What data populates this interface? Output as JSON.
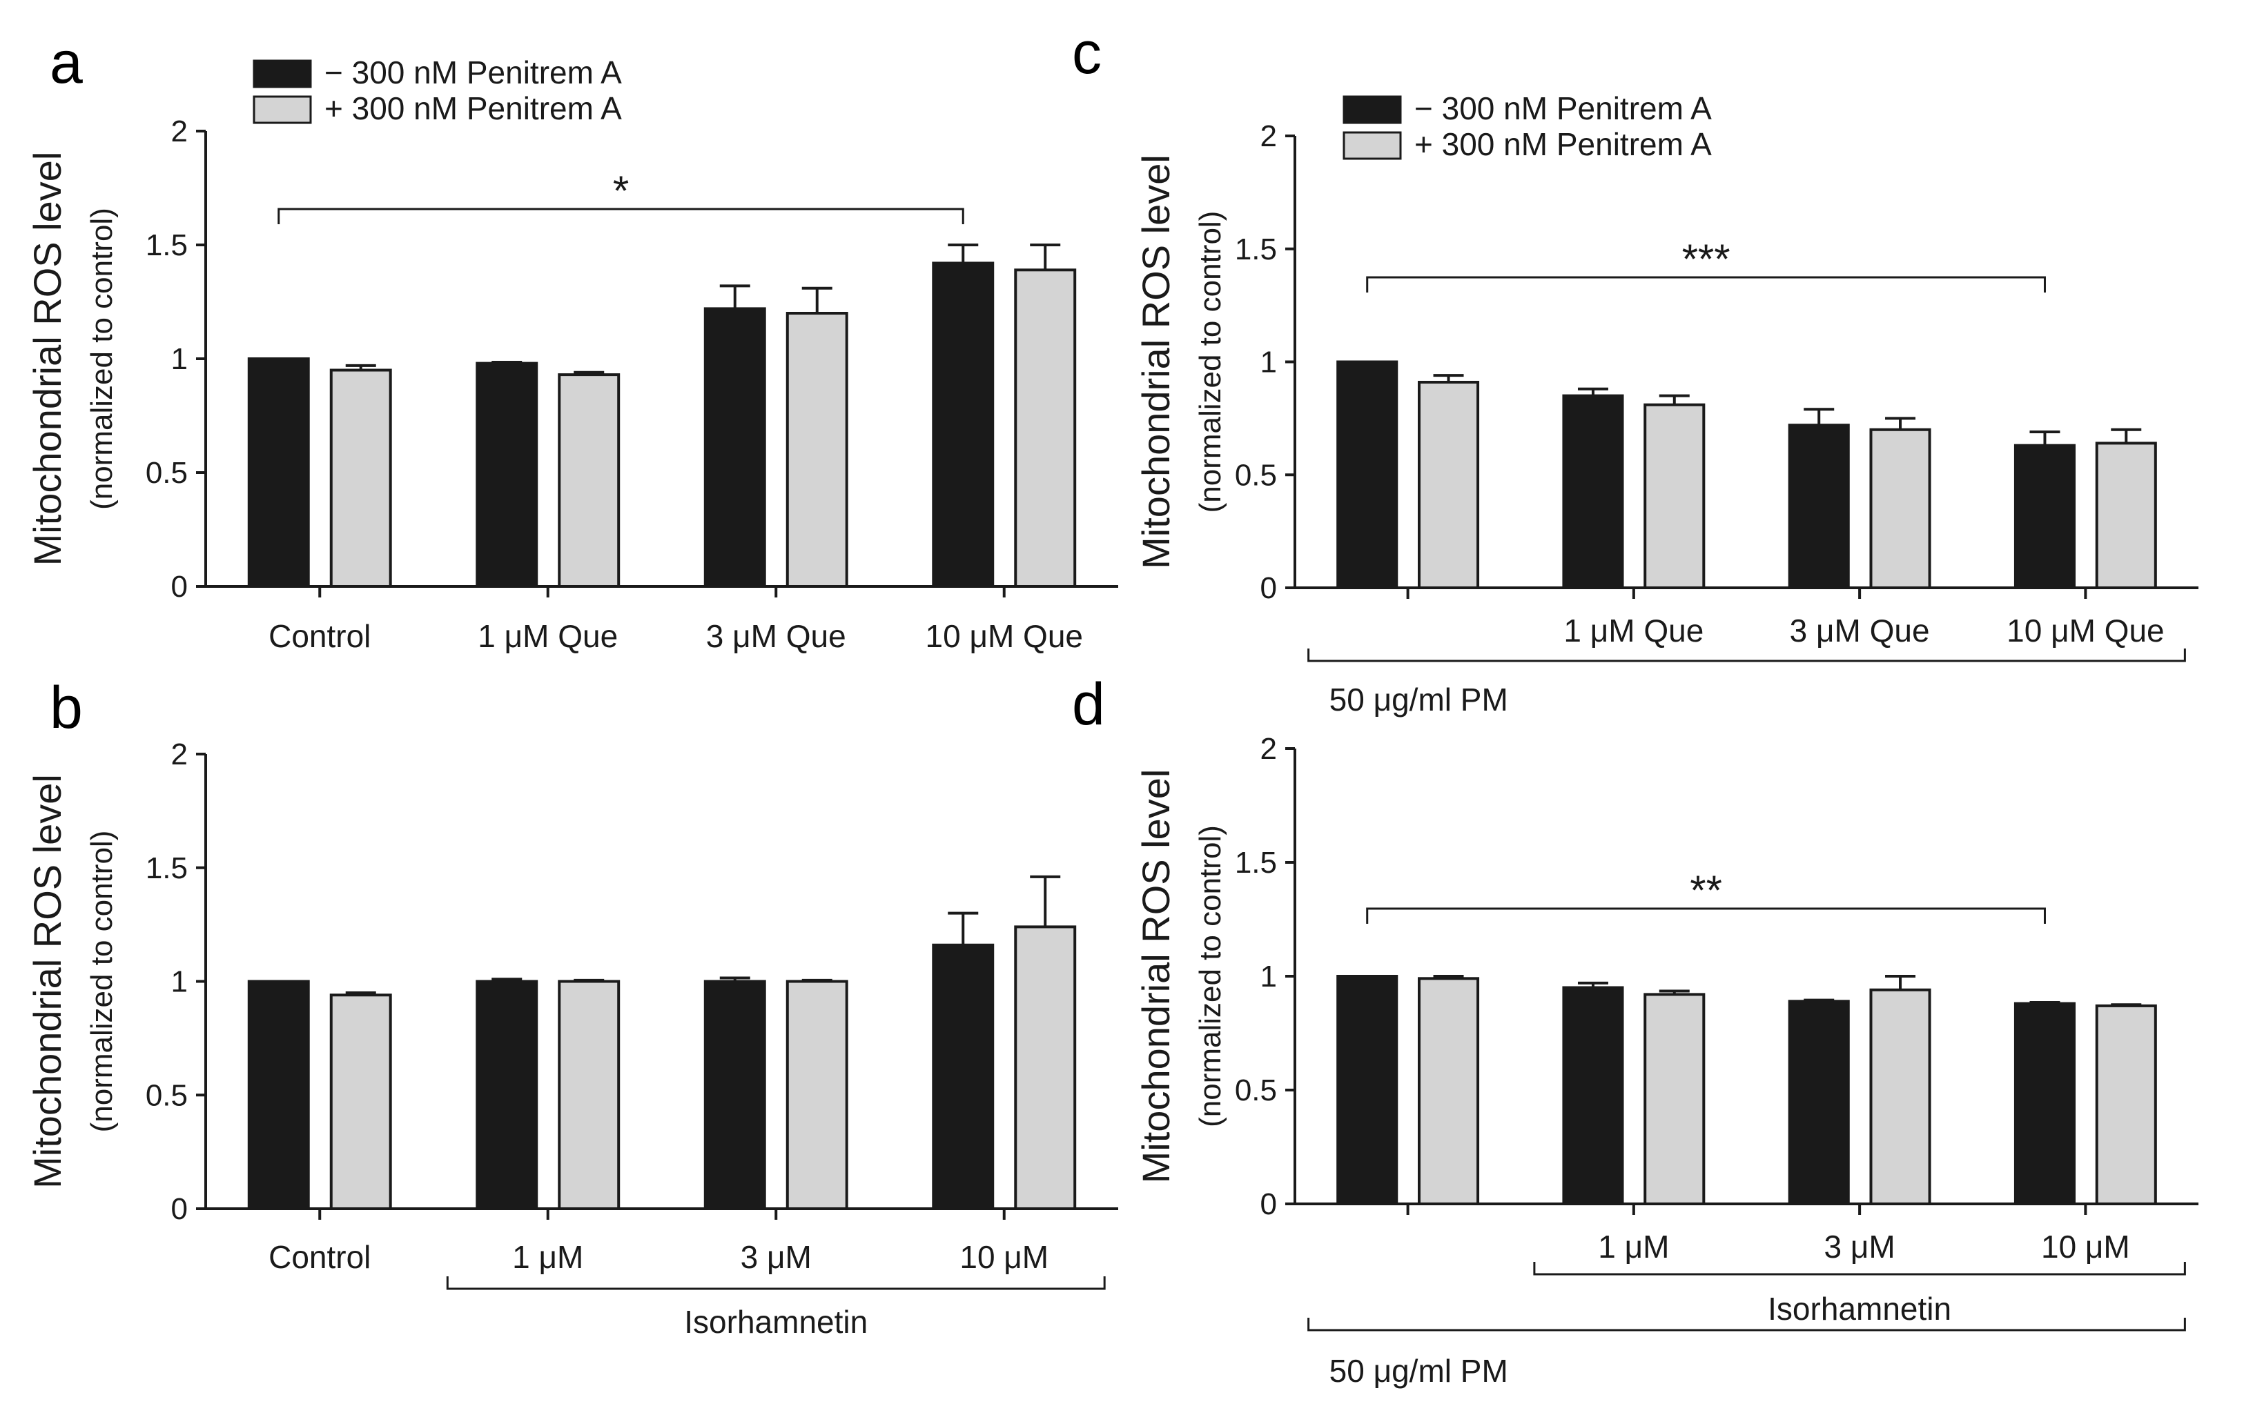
{
  "figure": {
    "legend": {
      "minus_label": "− 300 nM Penitrem A",
      "plus_label": "+ 300 nM Penitrem A"
    },
    "colors": {
      "minus": "#1a1a1a",
      "plus": "#d4d4d4",
      "axis": "#1a1a1a"
    }
  },
  "chart_data": [
    {
      "panel": "a",
      "type": "bar",
      "title": "",
      "ylabel": "Mitochondrial ROS level",
      "ylabel_sub": "(normalized to control)",
      "ylim": [
        0,
        2
      ],
      "yticks": [
        "0",
        "0.5",
        "1",
        "1.5",
        "2"
      ],
      "categories": [
        "Control",
        "1 μM Que",
        "3 μM Que",
        "10 μM Que"
      ],
      "series": [
        {
          "name": "− 300 nM Penitrem A",
          "values": [
            1.0,
            0.98,
            1.22,
            1.42
          ],
          "errors": [
            0.0,
            0.005,
            0.1,
            0.08
          ]
        },
        {
          "name": "+ 300 nM Penitrem A",
          "values": [
            0.95,
            0.93,
            1.2,
            1.39
          ],
          "errors": [
            0.02,
            0.01,
            0.11,
            0.11
          ]
        }
      ],
      "legend": [
        "− 300 nM Penitrem A",
        "+ 300 nM Penitrem A"
      ],
      "significance": {
        "label": "*",
        "from": 0,
        "to": 3
      },
      "group_labels": []
    },
    {
      "panel": "b",
      "type": "bar",
      "title": "",
      "ylabel": "Mitochondrial ROS level",
      "ylabel_sub": "(normalized to control)",
      "ylim": [
        0,
        2
      ],
      "yticks": [
        "0",
        "0.5",
        "1",
        "1.5",
        "2"
      ],
      "categories": [
        "Control",
        "1 μM",
        "3 μM",
        "10 μM"
      ],
      "series": [
        {
          "name": "− 300 nM Penitrem A",
          "values": [
            1.0,
            1.0,
            1.0,
            1.16
          ],
          "errors": [
            0.0,
            0.01,
            0.015,
            0.14
          ]
        },
        {
          "name": "+ 300 nM Penitrem A",
          "values": [
            0.94,
            1.0,
            1.0,
            1.24
          ],
          "errors": [
            0.01,
            0.005,
            0.005,
            0.22
          ]
        }
      ],
      "legend": [],
      "significance": null,
      "group_labels": [
        {
          "text": "Isorhamnetin",
          "from": 1,
          "to": 3
        }
      ]
    },
    {
      "panel": "c",
      "type": "bar",
      "title": "",
      "ylabel": "Mitochondrial ROS level",
      "ylabel_sub": "(normalized to control)",
      "ylim": [
        0,
        2
      ],
      "yticks": [
        "0",
        "0.5",
        "1",
        "1.5",
        "2"
      ],
      "categories": [
        "",
        "1 μM Que",
        "3 μM Que",
        "10 μM Que"
      ],
      "series": [
        {
          "name": "− 300 nM Penitrem A",
          "values": [
            1.0,
            0.85,
            0.72,
            0.63
          ],
          "errors": [
            0.0,
            0.03,
            0.07,
            0.06
          ]
        },
        {
          "name": "+ 300 nM Penitrem A",
          "values": [
            0.91,
            0.81,
            0.7,
            0.64
          ],
          "errors": [
            0.03,
            0.04,
            0.05,
            0.06
          ]
        }
      ],
      "legend": [
        "− 300 nM Penitrem A",
        "+ 300 nM Penitrem A"
      ],
      "significance": {
        "label": "***",
        "from": 0,
        "to": 3
      },
      "group_labels": [
        {
          "text": "50 μg/ml PM",
          "from": 0,
          "to": 3
        }
      ]
    },
    {
      "panel": "d",
      "type": "bar",
      "title": "",
      "ylabel": "Mitochondrial ROS level",
      "ylabel_sub": "(normalized to control)",
      "ylim": [
        0,
        2
      ],
      "yticks": [
        "0",
        "0.5",
        "1",
        "1.5",
        "2"
      ],
      "categories": [
        "",
        "1 μM",
        "3 μM",
        "10 μM"
      ],
      "series": [
        {
          "name": "− 300 nM Penitrem A",
          "values": [
            1.0,
            0.95,
            0.89,
            0.88
          ],
          "errors": [
            0.0,
            0.02,
            0.005,
            0.005
          ]
        },
        {
          "name": "+ 300 nM Penitrem A",
          "values": [
            0.99,
            0.92,
            0.94,
            0.87
          ],
          "errors": [
            0.01,
            0.015,
            0.06,
            0.005
          ]
        }
      ],
      "legend": [],
      "significance": {
        "label": "**",
        "from": 0,
        "to": 3
      },
      "group_labels": [
        {
          "text": "Isorhamnetin",
          "from": 1,
          "to": 3
        },
        {
          "text": "50 μg/ml PM",
          "from": 0,
          "to": 3
        }
      ]
    }
  ]
}
